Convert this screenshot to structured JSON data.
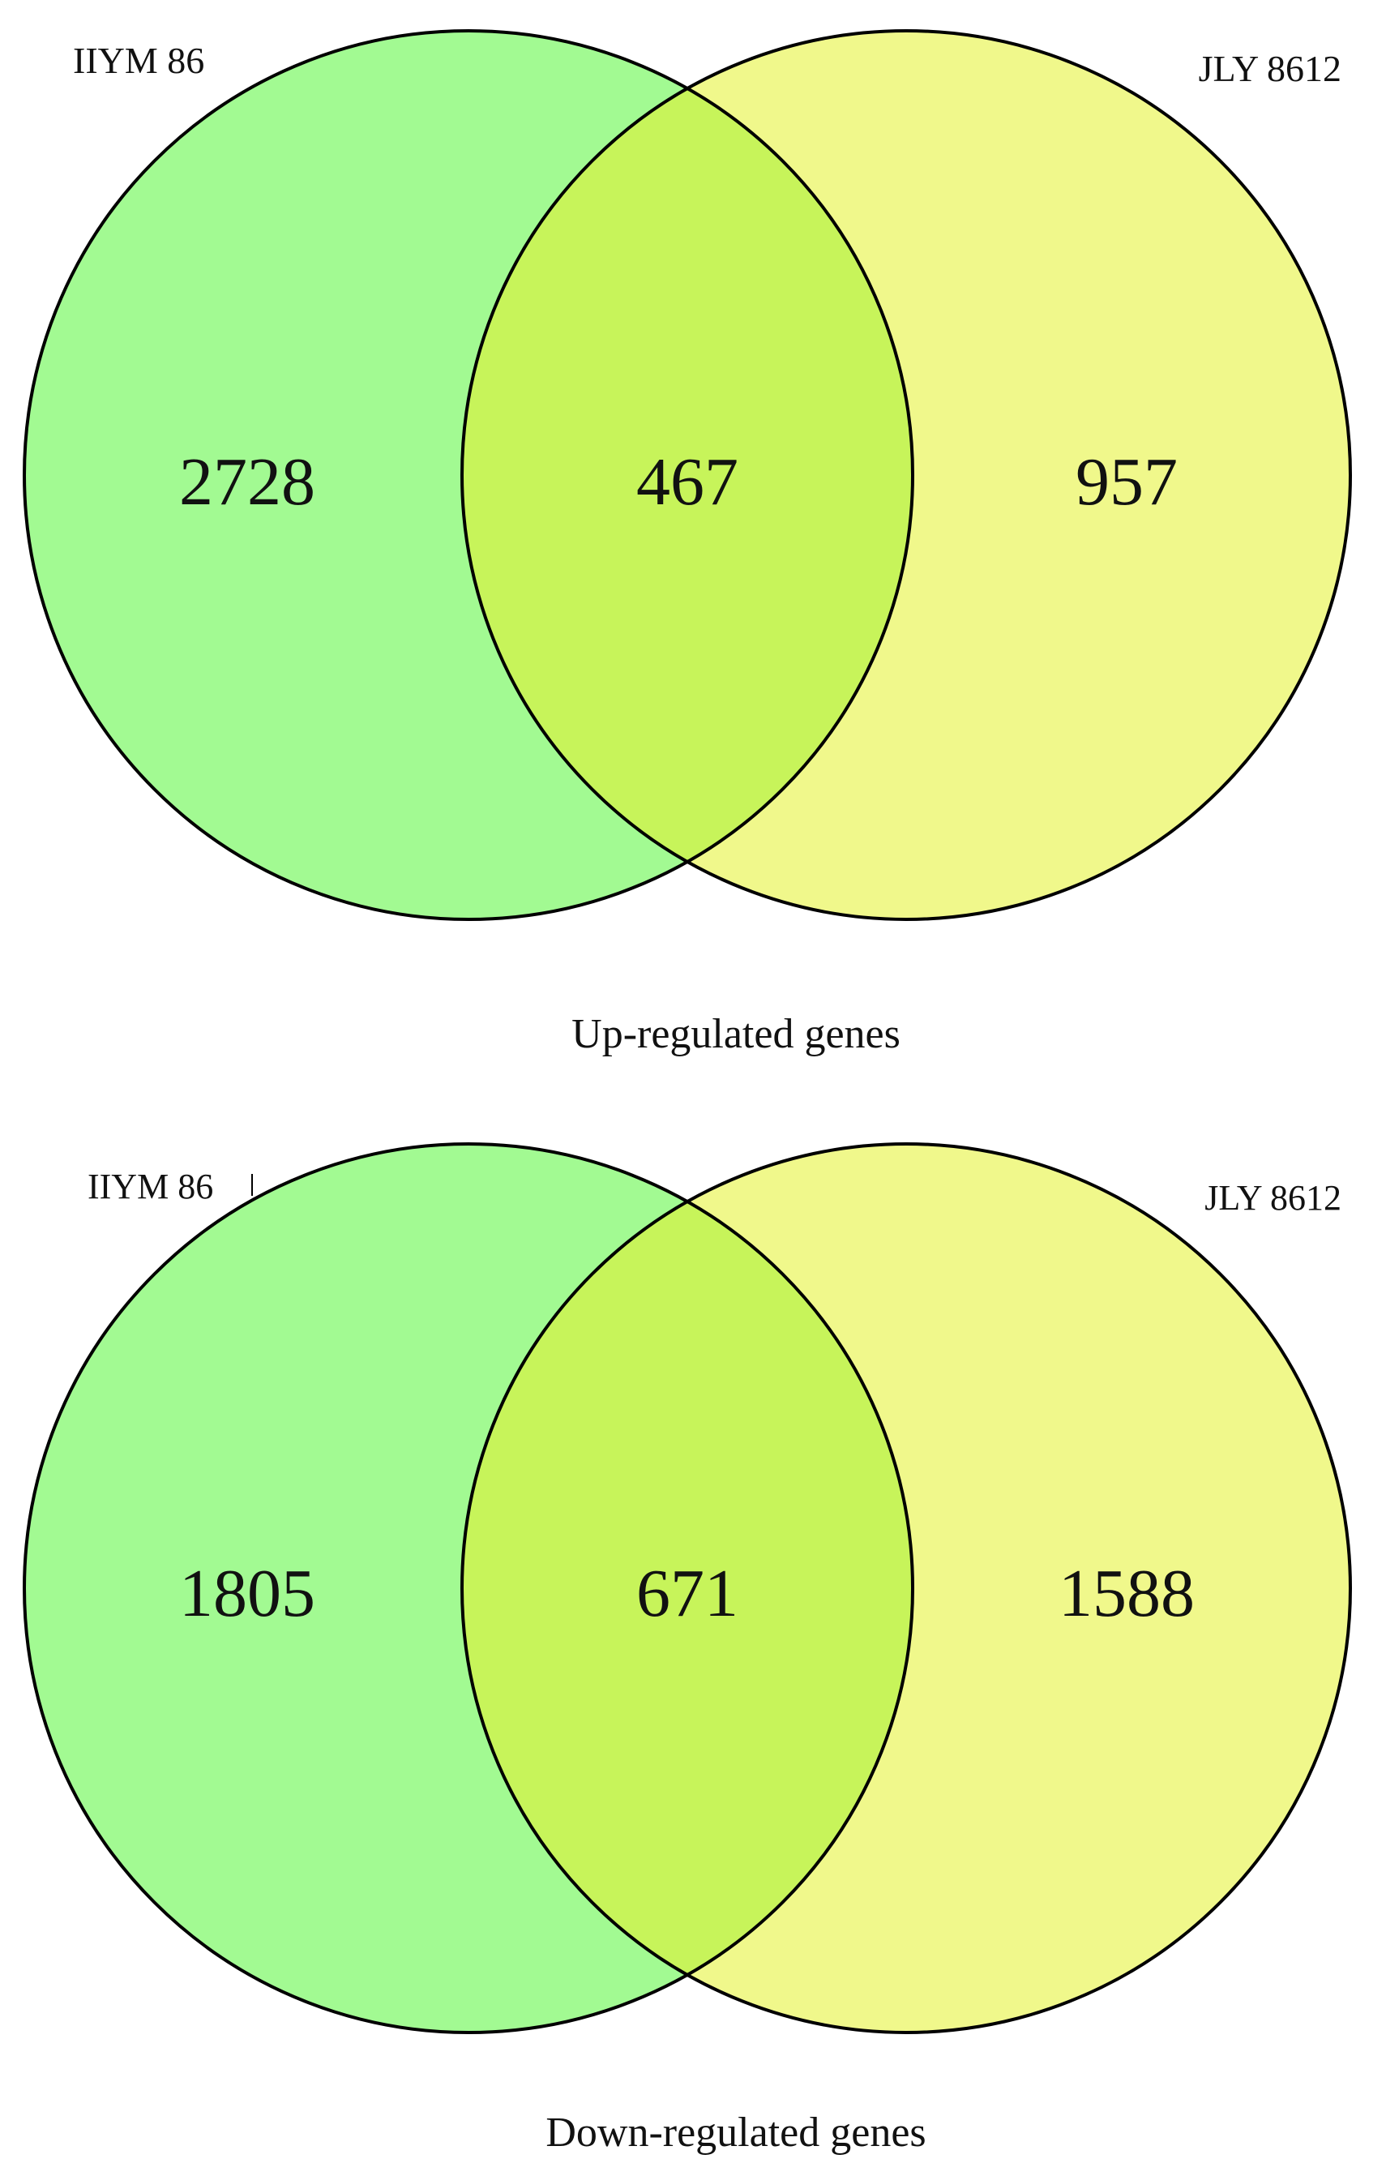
{
  "diagrams": [
    {
      "set_a_label": "IIYM 86",
      "set_b_label": "JLY 8612",
      "only_a": "2728",
      "overlap": "467",
      "only_b": "957",
      "caption": "Up-regulated genes"
    },
    {
      "set_a_label": "IIYM 86",
      "set_b_label": "JLY 8612",
      "only_a": "1805",
      "overlap": "671",
      "only_b": "1588",
      "caption": "Down-regulated genes"
    }
  ],
  "colors": {
    "set_a": "#a2fa92",
    "set_b": "#f0f88b",
    "overlap": "#c7f45a",
    "stroke": "#000000"
  }
}
